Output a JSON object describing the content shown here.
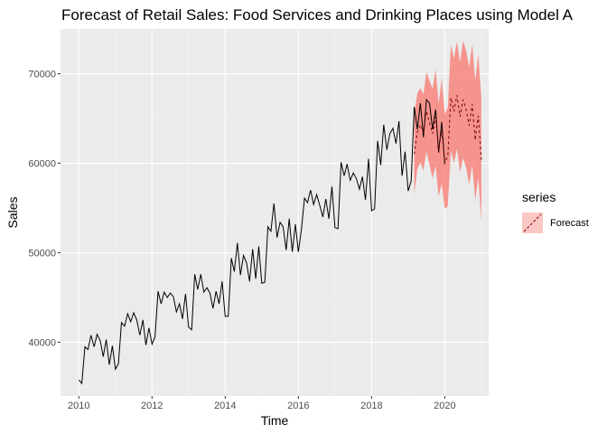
{
  "chart_data": {
    "type": "line",
    "title": "Forecast of Retail Sales: Food Services and Drinking Places using Model A",
    "xlabel": "Time",
    "ylabel": "Sales",
    "xlim": [
      2009.5,
      2021.2
    ],
    "ylim": [
      34000,
      75000
    ],
    "x_ticks": [
      2010,
      2012,
      2014,
      2016,
      2018,
      2020
    ],
    "x_tick_labels": [
      "2010",
      "2012",
      "2014",
      "2016",
      "2018",
      "2020"
    ],
    "y_ticks": [
      40000,
      50000,
      60000,
      70000
    ],
    "y_tick_labels": [
      "40000",
      "50000",
      "60000",
      "70000"
    ],
    "grid": true,
    "legend": {
      "title": "series",
      "position": "right",
      "entries": [
        {
          "label": "Forecast",
          "fill": "#f8766d"
        }
      ]
    },
    "series": [
      {
        "role": "actual",
        "color": "#000000",
        "x": [
          2010.0,
          2010.083,
          2010.167,
          2010.25,
          2010.333,
          2010.417,
          2010.5,
          2010.583,
          2010.667,
          2010.75,
          2010.833,
          2010.917,
          2011.0,
          2011.083,
          2011.167,
          2011.25,
          2011.333,
          2011.417,
          2011.5,
          2011.583,
          2011.667,
          2011.75,
          2011.833,
          2011.917,
          2012.0,
          2012.083,
          2012.167,
          2012.25,
          2012.333,
          2012.417,
          2012.5,
          2012.583,
          2012.667,
          2012.75,
          2012.833,
          2012.917,
          2013.0,
          2013.083,
          2013.167,
          2013.25,
          2013.333,
          2013.417,
          2013.5,
          2013.583,
          2013.667,
          2013.75,
          2013.833,
          2013.917,
          2014.0,
          2014.083,
          2014.167,
          2014.25,
          2014.333,
          2014.417,
          2014.5,
          2014.583,
          2014.667,
          2014.75,
          2014.833,
          2014.917,
          2015.0,
          2015.083,
          2015.167,
          2015.25,
          2015.333,
          2015.417,
          2015.5,
          2015.583,
          2015.667,
          2015.75,
          2015.833,
          2015.917,
          2016.0,
          2016.083,
          2016.167,
          2016.25,
          2016.333,
          2016.417,
          2016.5,
          2016.583,
          2016.667,
          2016.75,
          2016.833,
          2016.917,
          2017.0,
          2017.083,
          2017.167,
          2017.25,
          2017.333,
          2017.417,
          2017.5,
          2017.583,
          2017.667,
          2017.75,
          2017.833,
          2017.917,
          2018.0,
          2018.083,
          2018.167,
          2018.25,
          2018.333,
          2018.417,
          2018.5,
          2018.583,
          2018.667,
          2018.75,
          2018.833,
          2018.917,
          2019.0,
          2019.083,
          2019.167,
          2019.25,
          2019.333,
          2019.417,
          2019.5,
          2019.583,
          2019.667,
          2019.75,
          2019.833,
          2019.917,
          2020.0
        ],
        "values": [
          35800,
          35400,
          39500,
          39200,
          40800,
          39500,
          40900,
          40200,
          38400,
          40300,
          37500,
          39600,
          37000,
          37600,
          42200,
          41800,
          43200,
          42300,
          43300,
          42500,
          40800,
          42500,
          39700,
          41600,
          39800,
          40600,
          45700,
          44300,
          45600,
          45000,
          45500,
          45100,
          43400,
          44300,
          42600,
          45400,
          41700,
          41400,
          47600,
          45900,
          47600,
          45600,
          46100,
          45500,
          43800,
          45700,
          44300,
          46800,
          42900,
          42900,
          49400,
          47900,
          51100,
          47500,
          49700,
          48900,
          46800,
          50400,
          47100,
          50700,
          46600,
          46700,
          52900,
          52400,
          55500,
          51700,
          53400,
          52900,
          50300,
          53800,
          50100,
          53200,
          50100,
          52600,
          56100,
          55600,
          57000,
          55400,
          56500,
          55300,
          54000,
          56000,
          53800,
          57400,
          52800,
          52700,
          60100,
          58600,
          59900,
          58100,
          58900,
          58300,
          57100,
          58500,
          55900,
          60500,
          54700,
          54900,
          62500,
          59800,
          64300,
          61500,
          63300,
          63900,
          62200,
          64700,
          58600,
          61300,
          56900,
          58000,
          66300,
          63800,
          66700,
          62900,
          67100,
          66700,
          63800,
          66000,
          61200,
          64600,
          59900
        ]
      },
      {
        "name": "Forecast",
        "role": "forecast-mean",
        "color": "#7a0000",
        "dash": "dashed",
        "x": [
          2019.167,
          2019.25,
          2019.333,
          2019.417,
          2019.5,
          2019.583,
          2019.667,
          2019.75,
          2019.833,
          2019.917,
          2020.0,
          2020.083,
          2020.167,
          2020.25,
          2020.333,
          2020.417,
          2020.5,
          2020.583,
          2020.667,
          2020.75,
          2020.833,
          2020.917,
          2021.0
        ],
        "values": [
          61000,
          63500,
          64300,
          63500,
          65800,
          64500,
          63300,
          65200,
          61500,
          63600,
          60200,
          60700,
          67300,
          65800,
          67600,
          65200,
          67100,
          66000,
          64200,
          66600,
          62600,
          65300,
          60400
        ],
        "lower": [
          56500,
          59300,
          60100,
          59200,
          61300,
          59800,
          58300,
          59700,
          56300,
          57700,
          54900,
          55200,
          61400,
          60000,
          61600,
          59000,
          60600,
          59500,
          57600,
          59800,
          55900,
          58400,
          53500
        ],
        "upper": [
          65500,
          67800,
          68400,
          67700,
          70200,
          69200,
          68300,
          70500,
          66600,
          69500,
          65500,
          66200,
          73200,
          71700,
          73600,
          71300,
          73700,
          72600,
          70700,
          73300,
          69200,
          72200,
          67300
        ]
      }
    ]
  },
  "colors": {
    "panel_background": "#ebebeb",
    "grid_major": "#ffffff",
    "grid_minor": "#f5f5f5",
    "forecast_band": "#f8766d"
  }
}
